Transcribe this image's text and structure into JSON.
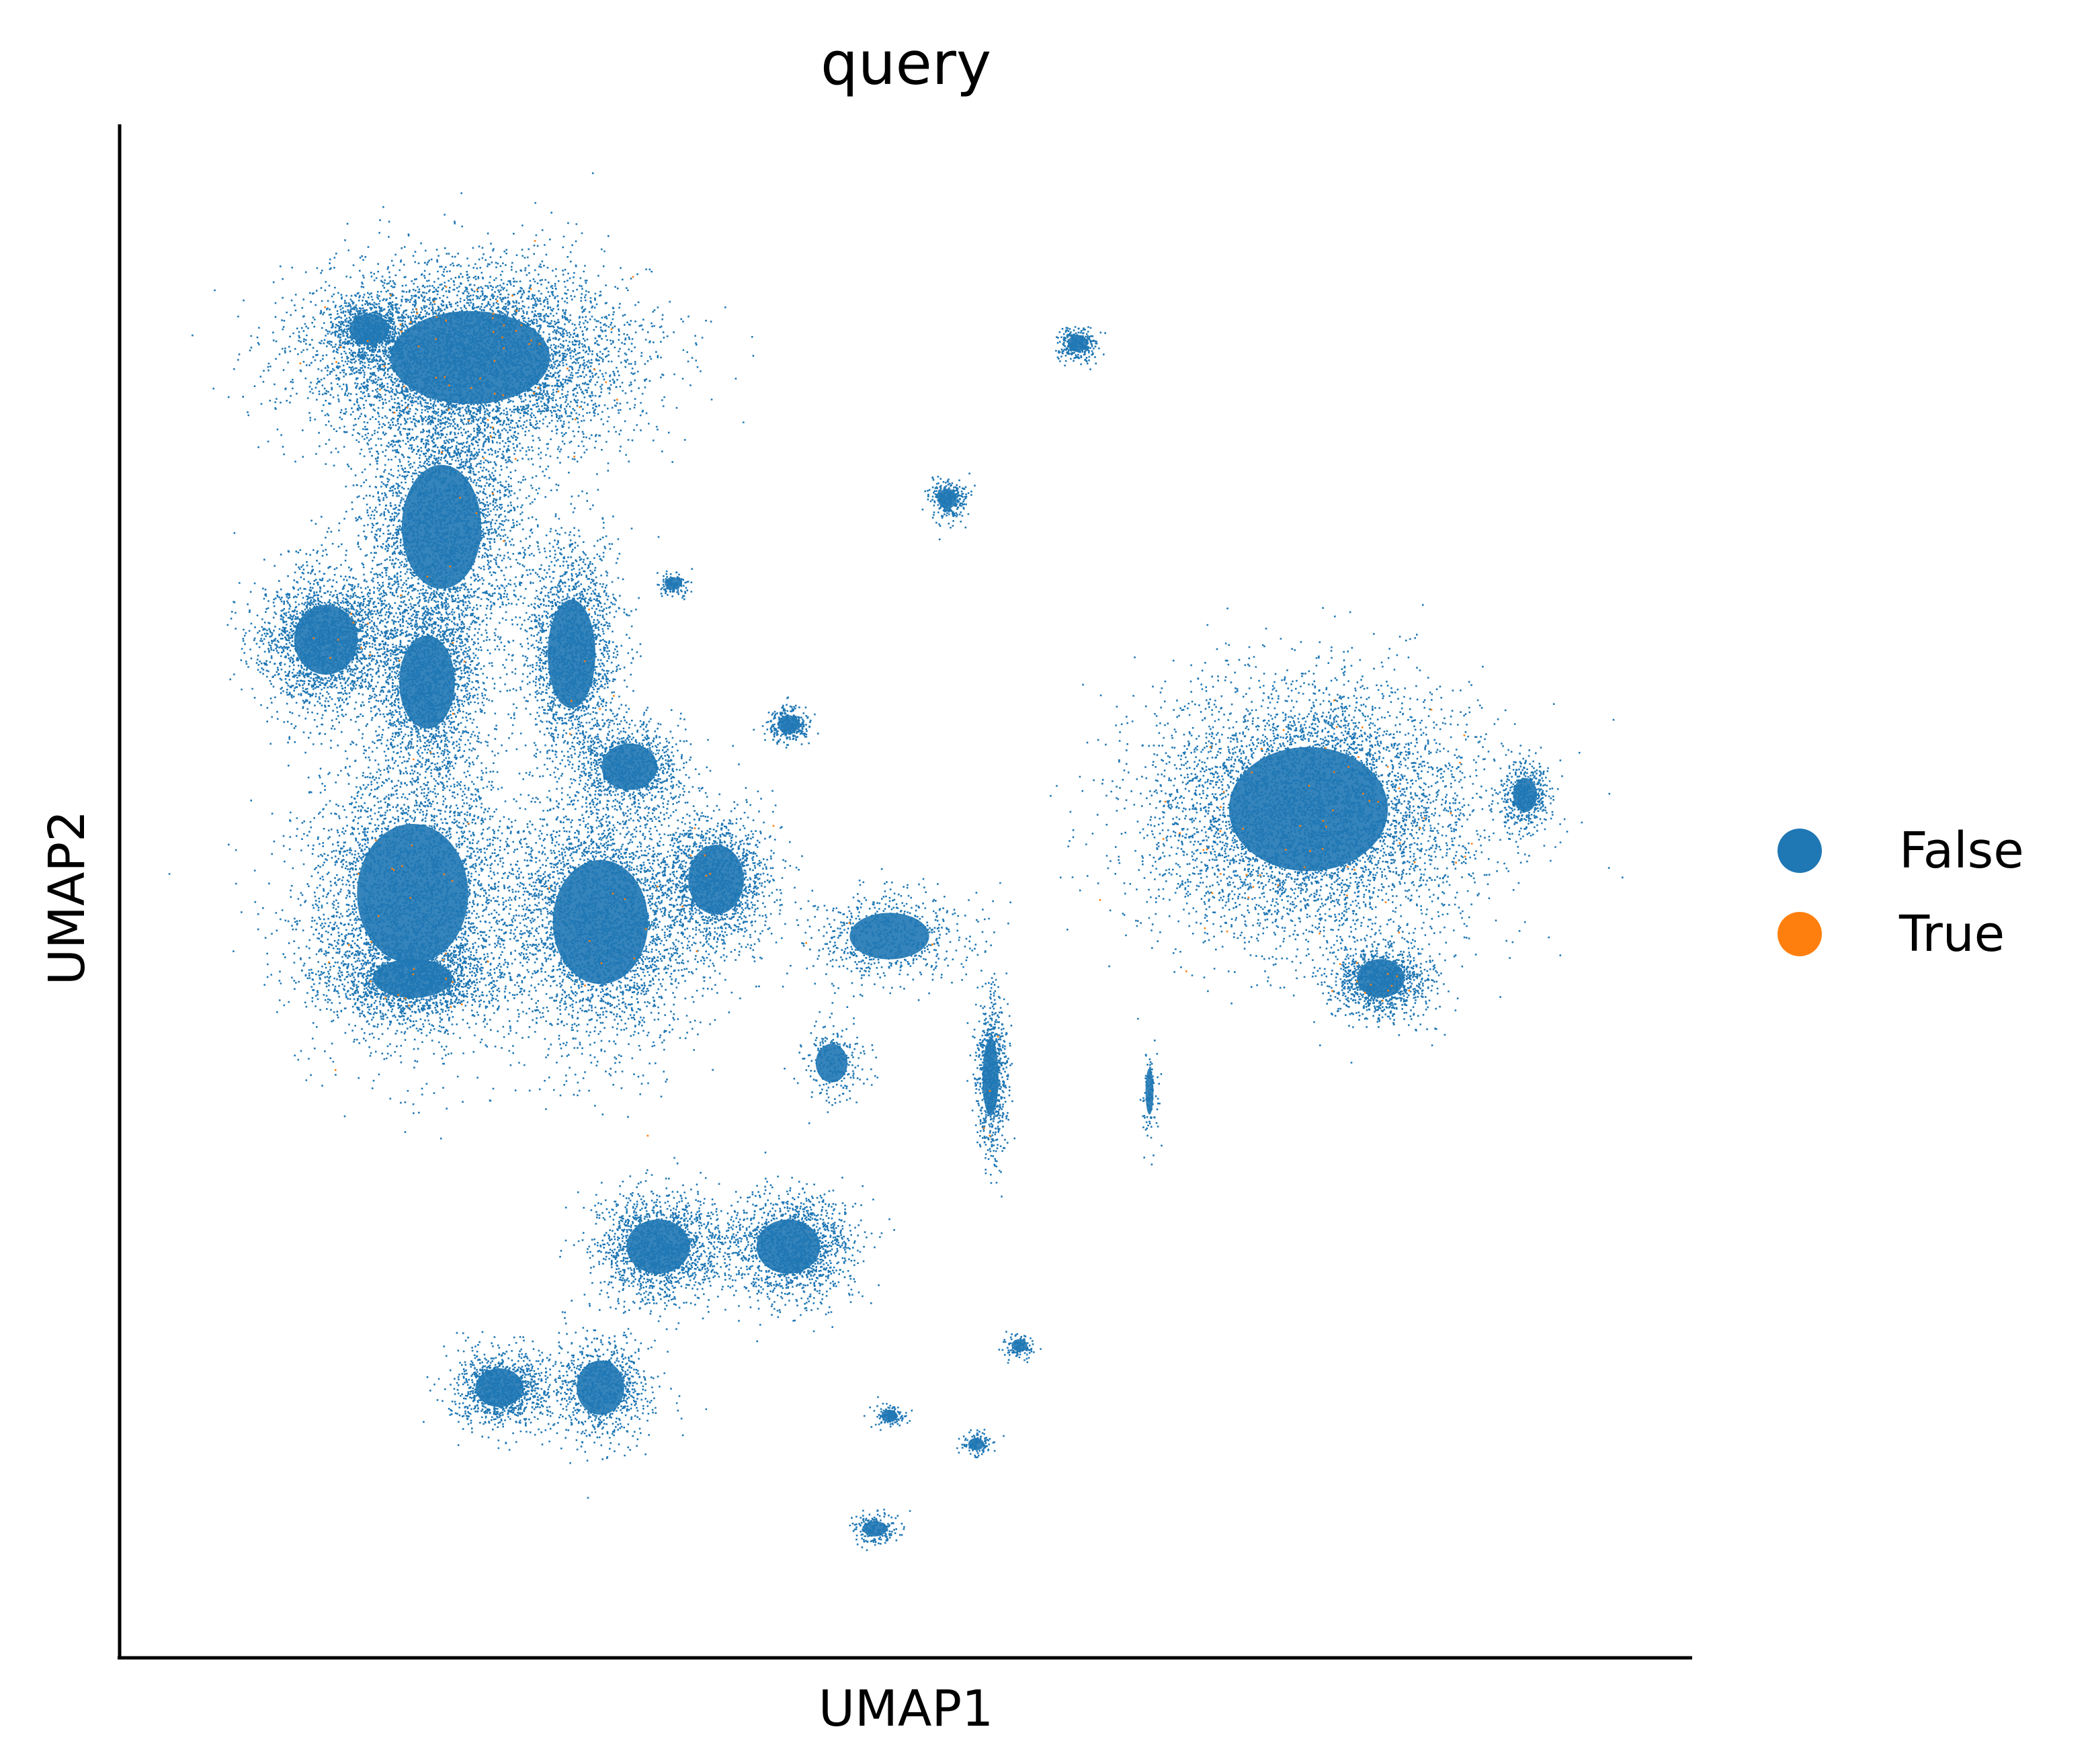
{
  "chart_data": {
    "type": "scatter",
    "title": "query",
    "xlabel": "UMAP1",
    "ylabel": "UMAP2",
    "xticks": [],
    "yticks": [],
    "xlim": [
      0,
      100
    ],
    "ylim": [
      0,
      100
    ],
    "grid": false,
    "legend_position": "right",
    "series": [
      {
        "name": "False",
        "color": "#1f77b4"
      },
      {
        "name": "True",
        "color": "#ff7f0e"
      }
    ],
    "clusters": [
      {
        "x": 20,
        "y": 88,
        "rx": 10,
        "ry": 6,
        "n": 6000,
        "true_frac": 0.01
      },
      {
        "x": 13,
        "y": 90,
        "rx": 2.5,
        "ry": 2,
        "n": 800,
        "true_frac": 0
      },
      {
        "x": 18,
        "y": 76,
        "rx": 5,
        "ry": 8,
        "n": 3000,
        "true_frac": 0.005
      },
      {
        "x": 10,
        "y": 68,
        "rx": 4,
        "ry": 4.5,
        "n": 2200,
        "true_frac": 0.003
      },
      {
        "x": 17,
        "y": 65,
        "rx": 3.5,
        "ry": 6,
        "n": 2000,
        "true_frac": 0.003
      },
      {
        "x": 27,
        "y": 67,
        "rx": 3,
        "ry": 7,
        "n": 2000,
        "true_frac": 0.003
      },
      {
        "x": 16,
        "y": 50,
        "rx": 7,
        "ry": 9,
        "n": 4000,
        "true_frac": 0.004
      },
      {
        "x": 29,
        "y": 48,
        "rx": 6,
        "ry": 8,
        "n": 3500,
        "true_frac": 0.004
      },
      {
        "x": 37,
        "y": 51,
        "rx": 3.5,
        "ry": 4.5,
        "n": 1500,
        "true_frac": 0.004
      },
      {
        "x": 16,
        "y": 44,
        "rx": 5,
        "ry": 2.5,
        "n": 1500,
        "true_frac": 0.01
      },
      {
        "x": 31,
        "y": 59,
        "rx": 3.5,
        "ry": 3,
        "n": 1000,
        "true_frac": 0.002
      },
      {
        "x": 42,
        "y": 62,
        "rx": 1.3,
        "ry": 1.2,
        "n": 300,
        "true_frac": 0
      },
      {
        "x": 34,
        "y": 72,
        "rx": 1,
        "ry": 0.8,
        "n": 120,
        "true_frac": 0
      },
      {
        "x": 78,
        "y": 56,
        "rx": 10,
        "ry": 8,
        "n": 6000,
        "true_frac": 0.012
      },
      {
        "x": 83,
        "y": 44,
        "rx": 3,
        "ry": 2.5,
        "n": 1200,
        "true_frac": 0.01
      },
      {
        "x": 93,
        "y": 57,
        "rx": 1.5,
        "ry": 2.2,
        "n": 500,
        "true_frac": 0
      },
      {
        "x": 62,
        "y": 89,
        "rx": 1.2,
        "ry": 1.1,
        "n": 300,
        "true_frac": 0
      },
      {
        "x": 53,
        "y": 78,
        "rx": 1.2,
        "ry": 1.3,
        "n": 300,
        "true_frac": 0
      },
      {
        "x": 56,
        "y": 37,
        "rx": 1,
        "ry": 5,
        "n": 800,
        "true_frac": 0.005
      },
      {
        "x": 49,
        "y": 47,
        "rx": 5,
        "ry": 3,
        "n": 700,
        "true_frac": 0.005
      },
      {
        "x": 45,
        "y": 38,
        "rx": 2,
        "ry": 2.5,
        "n": 250,
        "true_frac": 0.004
      },
      {
        "x": 33,
        "y": 25,
        "rx": 4,
        "ry": 3.5,
        "n": 1600,
        "true_frac": 0
      },
      {
        "x": 42,
        "y": 25,
        "rx": 4,
        "ry": 3.5,
        "n": 1600,
        "true_frac": 0
      },
      {
        "x": 22,
        "y": 15,
        "rx": 3,
        "ry": 2.5,
        "n": 1100,
        "true_frac": 0
      },
      {
        "x": 29,
        "y": 15,
        "rx": 3,
        "ry": 3.5,
        "n": 900,
        "true_frac": 0
      },
      {
        "x": 48,
        "y": 5,
        "rx": 1.5,
        "ry": 1,
        "n": 200,
        "true_frac": 0
      },
      {
        "x": 49,
        "y": 13,
        "rx": 1,
        "ry": 0.8,
        "n": 120,
        "true_frac": 0
      },
      {
        "x": 55,
        "y": 11,
        "rx": 1,
        "ry": 0.8,
        "n": 120,
        "true_frac": 0
      },
      {
        "x": 58,
        "y": 18,
        "rx": 1,
        "ry": 0.8,
        "n": 120,
        "true_frac": 0
      },
      {
        "x": 67,
        "y": 36,
        "rx": 0.5,
        "ry": 3,
        "n": 100,
        "true_frac": 0
      }
    ]
  }
}
